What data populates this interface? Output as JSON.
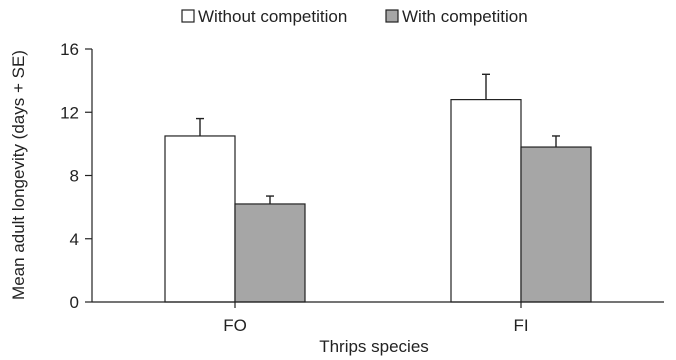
{
  "chart_data": {
    "type": "bar",
    "categories": [
      "FO",
      "FI"
    ],
    "series": [
      {
        "name": "Without competition",
        "values": [
          10.5,
          12.8
        ],
        "errors": [
          1.1,
          1.6
        ],
        "fill": "#ffffff"
      },
      {
        "name": "With competition",
        "values": [
          6.2,
          9.8
        ],
        "errors": [
          0.5,
          0.7
        ],
        "fill": "#a6a6a6"
      }
    ],
    "xlabel": "Thrips species",
    "ylabel": "Mean adult longevity (days + SE)",
    "ylim": [
      0,
      16
    ],
    "yticks": [
      0,
      4,
      8,
      12,
      16
    ],
    "grid": false,
    "legend_position": "top"
  }
}
